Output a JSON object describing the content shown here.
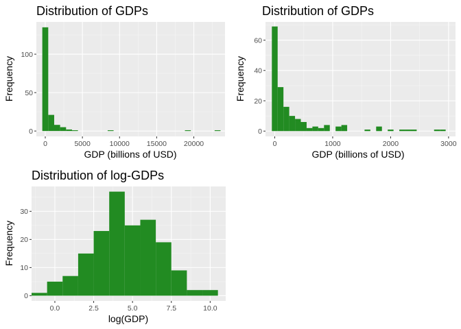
{
  "chart_data": [
    {
      "type": "bar",
      "title": "Distribution of GDPs",
      "xlabel": "GDP (billions of USD)",
      "ylabel": "Frequency",
      "xlim": [
        -1200,
        24200
      ],
      "ylim": [
        -7,
        142
      ],
      "xticks": [
        0,
        5000,
        10000,
        15000,
        20000
      ],
      "xtick_labels": [
        "0",
        "5000",
        "10000",
        "15000",
        "20000"
      ],
      "yticks": [
        0,
        50,
        100
      ],
      "ytick_labels": [
        "0",
        "50",
        "100"
      ],
      "grid": true,
      "bar_color": "#228b22",
      "bins": [
        {
          "x0": -400,
          "x1": 400,
          "count": 135
        },
        {
          "x0": 400,
          "x1": 1200,
          "count": 21
        },
        {
          "x0": 1200,
          "x1": 2000,
          "count": 8
        },
        {
          "x0": 2000,
          "x1": 2800,
          "count": 5
        },
        {
          "x0": 2800,
          "x1": 3600,
          "count": 2
        },
        {
          "x0": 3600,
          "x1": 4400,
          "count": 1
        },
        {
          "x0": 8400,
          "x1": 9200,
          "count": 1
        },
        {
          "x0": 18800,
          "x1": 19600,
          "count": 1
        },
        {
          "x0": 22800,
          "x1": 23600,
          "count": 1
        }
      ]
    },
    {
      "type": "bar",
      "title": "Distribution of GDPs",
      "xlabel": "GDP (billions of USD)",
      "ylabel": "Frequency",
      "xlim": [
        -160,
        3120
      ],
      "ylim": [
        -3.5,
        72
      ],
      "xticks": [
        0,
        1000,
        2000,
        3000
      ],
      "xtick_labels": [
        "0",
        "1000",
        "2000",
        "3000"
      ],
      "yticks": [
        0,
        20,
        40,
        60
      ],
      "ytick_labels": [
        "0",
        "20",
        "40",
        "60"
      ],
      "grid": true,
      "bar_color": "#228b22",
      "bins": [
        {
          "x0": -50,
          "x1": 50,
          "count": 69
        },
        {
          "x0": 50,
          "x1": 150,
          "count": 29
        },
        {
          "x0": 150,
          "x1": 250,
          "count": 16
        },
        {
          "x0": 250,
          "x1": 350,
          "count": 10
        },
        {
          "x0": 350,
          "x1": 450,
          "count": 8
        },
        {
          "x0": 450,
          "x1": 550,
          "count": 6
        },
        {
          "x0": 550,
          "x1": 650,
          "count": 2
        },
        {
          "x0": 650,
          "x1": 750,
          "count": 3
        },
        {
          "x0": 750,
          "x1": 850,
          "count": 2
        },
        {
          "x0": 850,
          "x1": 950,
          "count": 4
        },
        {
          "x0": 1050,
          "x1": 1150,
          "count": 3
        },
        {
          "x0": 1150,
          "x1": 1250,
          "count": 4
        },
        {
          "x0": 1550,
          "x1": 1650,
          "count": 1
        },
        {
          "x0": 1750,
          "x1": 1850,
          "count": 3
        },
        {
          "x0": 1950,
          "x1": 2050,
          "count": 1
        },
        {
          "x0": 2150,
          "x1": 2250,
          "count": 1
        },
        {
          "x0": 2250,
          "x1": 2350,
          "count": 1
        },
        {
          "x0": 2350,
          "x1": 2450,
          "count": 1
        },
        {
          "x0": 2750,
          "x1": 2850,
          "count": 1
        },
        {
          "x0": 2850,
          "x1": 2950,
          "count": 1
        }
      ]
    },
    {
      "type": "bar",
      "title": "Distribution of log-GDPs",
      "xlabel": "log(GDP)",
      "ylabel": "Frequency",
      "xlim": [
        -1.5,
        11.0
      ],
      "ylim": [
        -1.85,
        38.85
      ],
      "xticks": [
        0,
        2.5,
        5,
        7.5,
        10
      ],
      "xtick_labels": [
        "0.0",
        "2.5",
        "5.0",
        "7.5",
        "10.0"
      ],
      "yticks": [
        0,
        10,
        20,
        30
      ],
      "ytick_labels": [
        "0",
        "10",
        "20",
        "30"
      ],
      "grid": true,
      "bar_color": "#228b22",
      "bins": [
        {
          "x0": -1.5,
          "x1": -0.5,
          "count": 1
        },
        {
          "x0": -0.5,
          "x1": 0.5,
          "count": 5
        },
        {
          "x0": 0.5,
          "x1": 1.5,
          "count": 7
        },
        {
          "x0": 1.5,
          "x1": 2.5,
          "count": 15
        },
        {
          "x0": 2.5,
          "x1": 3.5,
          "count": 23
        },
        {
          "x0": 3.5,
          "x1": 4.5,
          "count": 37
        },
        {
          "x0": 4.5,
          "x1": 5.5,
          "count": 25
        },
        {
          "x0": 5.5,
          "x1": 6.5,
          "count": 27
        },
        {
          "x0": 6.5,
          "x1": 7.5,
          "count": 19
        },
        {
          "x0": 7.5,
          "x1": 8.5,
          "count": 9
        },
        {
          "x0": 8.5,
          "x1": 9.5,
          "count": 2
        },
        {
          "x0": 9.5,
          "x1": 10.5,
          "count": 2
        }
      ]
    }
  ]
}
